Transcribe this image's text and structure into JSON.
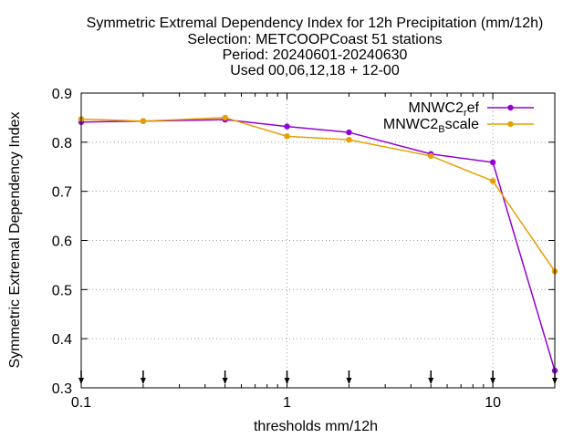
{
  "title_lines": [
    "Symmetric Extremal Dependency Index  for 12h Precipitation (mm/12h)",
    "Selection: METCOOPCoast     51 stations",
    "Period: 20240601-20240630",
    "Used 00,06,12,18 + 12-00"
  ],
  "chart_data": {
    "type": "line",
    "xlabel": "thresholds mm/12h",
    "ylabel": "Symmetric Extremal Dependency Index",
    "x_scale": "log",
    "xlim": [
      0.1,
      20
    ],
    "ylim": [
      0.3,
      0.9
    ],
    "x_ticks": [
      {
        "value": 0.1,
        "label": "0.1"
      },
      {
        "value": 1,
        "label": "1"
      },
      {
        "value": 10,
        "label": "10"
      }
    ],
    "x_grid_values": [
      1,
      10
    ],
    "y_ticks": [
      {
        "value": 0.3,
        "label": "0.3"
      },
      {
        "value": 0.4,
        "label": "0.4"
      },
      {
        "value": 0.5,
        "label": "0.5"
      },
      {
        "value": 0.6,
        "label": "0.6"
      },
      {
        "value": 0.7,
        "label": "0.7"
      },
      {
        "value": 0.8,
        "label": "0.8"
      },
      {
        "value": 0.9,
        "label": "0.9"
      }
    ],
    "grid": true,
    "legend_position": "top-right",
    "threshold_markers": [
      0.1,
      0.2,
      0.5,
      1,
      2,
      5,
      10,
      20
    ],
    "x": [
      0.1,
      0.2,
      0.5,
      1,
      2,
      5,
      10,
      20
    ],
    "series": [
      {
        "legend_main": "MNWC2",
        "legend_sub": "r",
        "legend_tail": "ef",
        "color": "#9400d3",
        "values": [
          0.841,
          0.843,
          0.846,
          0.832,
          0.82,
          0.776,
          0.759,
          0.335
        ]
      },
      {
        "legend_main": "MNWC2",
        "legend_sub": "B",
        "legend_tail": "scale",
        "color": "#e69f00",
        "values": [
          0.847,
          0.843,
          0.85,
          0.812,
          0.805,
          0.772,
          0.721,
          0.537
        ]
      }
    ]
  }
}
